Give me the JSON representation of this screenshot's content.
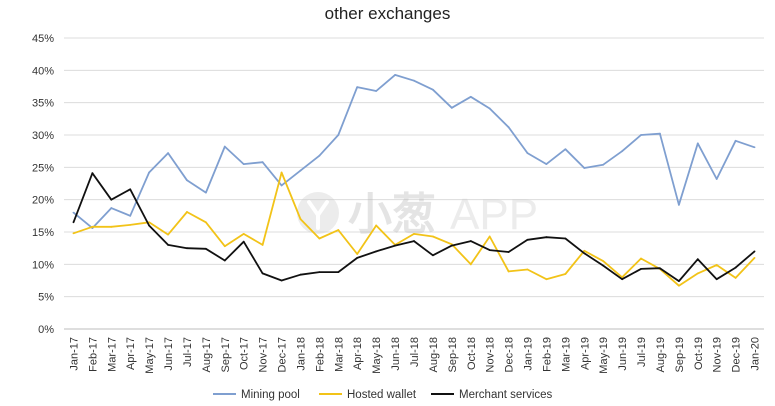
{
  "chart_data": {
    "type": "line",
    "title_lines": [
      "",
      "other exchanges"
    ],
    "xlabel": "",
    "ylabel": "",
    "ylim": [
      0,
      45
    ],
    "y_ticks": [
      "0%",
      "5%",
      "10%",
      "15%",
      "20%",
      "25%",
      "30%",
      "35%",
      "40%",
      "45%"
    ],
    "grid": true,
    "legend_position": "bottom",
    "categories": [
      "Jan-17",
      "Feb-17",
      "Mar-17",
      "Apr-17",
      "May-17",
      "Jun-17",
      "Jul-17",
      "Aug-17",
      "Sep-17",
      "Oct-17",
      "Nov-17",
      "Dec-17",
      "Jan-18",
      "Feb-18",
      "Mar-18",
      "Apr-18",
      "May-18",
      "Jun-18",
      "Jul-18",
      "Aug-18",
      "Sep-18",
      "Oct-18",
      "Nov-18",
      "Dec-18",
      "Jan-19",
      "Feb-19",
      "Mar-19",
      "Apr-19",
      "May-19",
      "Jun-19",
      "Jul-19",
      "Aug-19",
      "Sep-19",
      "Oct-19",
      "Nov-19",
      "Dec-19",
      "Jan-20"
    ],
    "series": [
      {
        "name": "Mining pool",
        "color": "#7f9fd0",
        "values": [
          18.0,
          15.6,
          18.7,
          17.5,
          24.2,
          27.2,
          23.0,
          21.1,
          28.2,
          25.5,
          25.8,
          22.2,
          24.5,
          26.8,
          30.0,
          37.4,
          36.8,
          39.3,
          38.4,
          37.0,
          34.2,
          35.9,
          34.1,
          31.2,
          27.2,
          25.5,
          27.8,
          24.9,
          25.4,
          27.5,
          30.0,
          30.2,
          19.2,
          28.7,
          23.2,
          29.1,
          28.1
        ]
      },
      {
        "name": "Hosted wallet",
        "color": "#f2c318",
        "values": [
          14.8,
          15.8,
          15.8,
          16.1,
          16.5,
          14.6,
          18.1,
          16.5,
          12.8,
          14.7,
          13.0,
          24.2,
          17.0,
          14.0,
          15.3,
          11.6,
          16.0,
          13.0,
          14.7,
          14.3,
          13.1,
          10.0,
          14.3,
          8.9,
          9.2,
          7.7,
          8.5,
          12.1,
          10.5,
          8.0,
          10.9,
          9.3,
          6.7,
          8.6,
          9.9,
          7.9,
          11.0
        ]
      },
      {
        "name": "Merchant services",
        "color": "#111111",
        "values": [
          16.5,
          24.1,
          20.0,
          21.6,
          16.0,
          13.0,
          12.5,
          12.4,
          10.6,
          13.5,
          8.6,
          7.5,
          8.4,
          8.8,
          8.8,
          11.0,
          12.0,
          12.9,
          13.6,
          11.4,
          12.9,
          13.6,
          12.2,
          11.9,
          13.8,
          14.2,
          14.0,
          11.7,
          9.8,
          7.7,
          9.3,
          9.4,
          7.4,
          10.8,
          7.7,
          9.5,
          12.0
        ]
      }
    ]
  },
  "watermark": {
    "brand": "小葱",
    "suffix": "APP"
  }
}
